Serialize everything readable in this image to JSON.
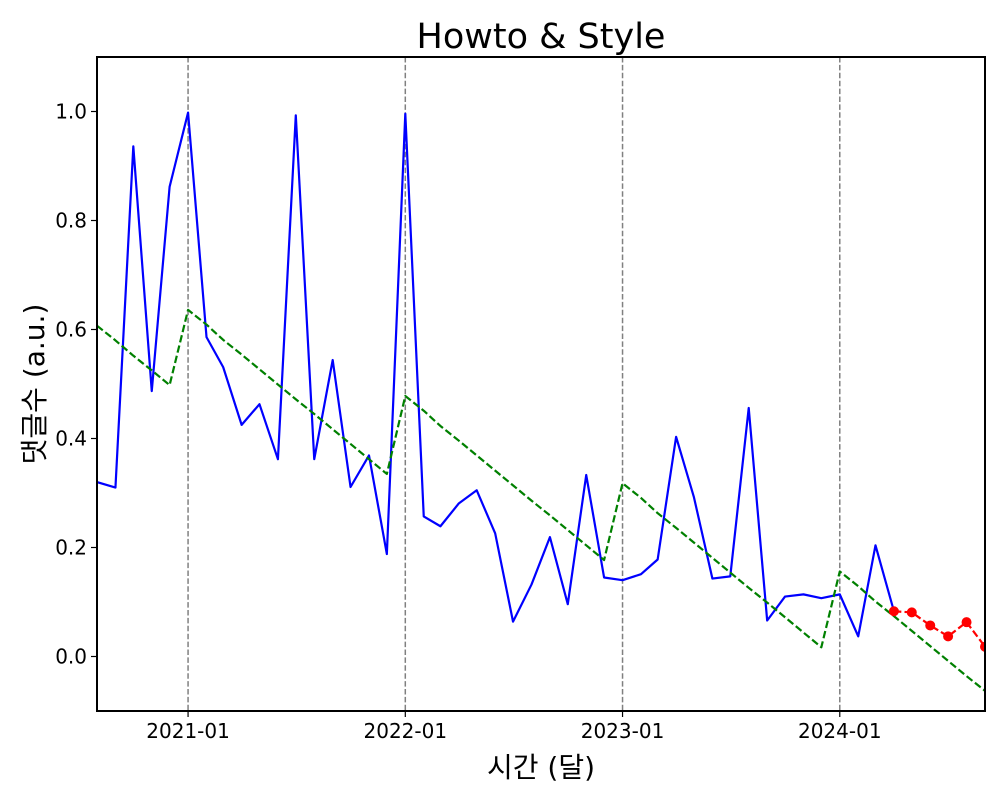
{
  "chart_data": {
    "type": "line",
    "title": "Howto & Style",
    "xlabel": "시간 (달)",
    "ylabel": "댓글수 (a.u.)",
    "xlim": [
      "2020-08",
      "2024-09"
    ],
    "ylim": [
      -0.1,
      1.1
    ],
    "xticks": [
      "2021-01",
      "2022-01",
      "2023-01",
      "2024-01"
    ],
    "yticks": [
      "0.0",
      "0.2",
      "0.4",
      "0.6",
      "0.8",
      "1.0"
    ],
    "grid": false,
    "legend": "none",
    "vlines": {
      "x": [
        "2021-01",
        "2022-01",
        "2023-01",
        "2024-01"
      ],
      "color": "#808080",
      "linestyle": "dashed"
    },
    "x": [
      "2020-08",
      "2020-09",
      "2020-10",
      "2020-11",
      "2020-12",
      "2021-01",
      "2021-02",
      "2021-03",
      "2021-04",
      "2021-05",
      "2021-06",
      "2021-07",
      "2021-08",
      "2021-09",
      "2021-10",
      "2021-11",
      "2021-12",
      "2022-01",
      "2022-02",
      "2022-03",
      "2022-04",
      "2022-05",
      "2022-06",
      "2022-07",
      "2022-08",
      "2022-09",
      "2022-10",
      "2022-11",
      "2022-12",
      "2023-01",
      "2023-02",
      "2023-03",
      "2023-04",
      "2023-05",
      "2023-06",
      "2023-07",
      "2023-08",
      "2023-09",
      "2023-10",
      "2023-11",
      "2023-12",
      "2024-01",
      "2024-02",
      "2024-03",
      "2024-04",
      "2024-05",
      "2024-06",
      "2024-07",
      "2024-08",
      "2024-09"
    ],
    "series": [
      {
        "color": "#0000ff",
        "linestyle": "solid",
        "marker": "none",
        "values": [
          0.32,
          0.31,
          0.936,
          0.487,
          0.862,
          0.998,
          0.586,
          0.531,
          0.425,
          0.463,
          0.362,
          0.993,
          0.362,
          0.544,
          0.311,
          0.369,
          0.188,
          0.996,
          0.257,
          0.239,
          0.281,
          0.305,
          0.226,
          0.064,
          0.132,
          0.219,
          0.096,
          0.333,
          0.145,
          0.14,
          0.151,
          0.178,
          0.403,
          0.292,
          0.143,
          0.147,
          0.456,
          0.066,
          0.11,
          0.114,
          0.107,
          0.114,
          0.037,
          0.204,
          0.083,
          null,
          null,
          null,
          null,
          null
        ]
      },
      {
        "color": "#008000",
        "linestyle": "dashed",
        "marker": "none",
        "values": [
          0.607,
          0.58,
          0.552,
          0.525,
          0.498,
          0.636,
          0.609,
          0.581,
          0.554,
          0.527,
          0.499,
          0.472,
          0.445,
          0.417,
          0.39,
          0.362,
          0.335,
          0.478,
          0.451,
          0.423,
          0.396,
          0.369,
          0.341,
          0.314,
          0.286,
          0.259,
          0.232,
          0.204,
          0.177,
          0.318,
          0.291,
          0.263,
          0.236,
          0.209,
          0.181,
          0.154,
          0.126,
          0.099,
          0.072,
          0.044,
          0.017,
          0.156,
          0.129,
          0.101,
          0.074,
          0.047,
          0.019,
          -0.008,
          -0.036,
          -0.063
        ]
      },
      {
        "color": "#ff0000",
        "linestyle": "dashed",
        "marker": "circle",
        "values": [
          null,
          null,
          null,
          null,
          null,
          null,
          null,
          null,
          null,
          null,
          null,
          null,
          null,
          null,
          null,
          null,
          null,
          null,
          null,
          null,
          null,
          null,
          null,
          null,
          null,
          null,
          null,
          null,
          null,
          null,
          null,
          null,
          null,
          null,
          null,
          null,
          null,
          null,
          null,
          null,
          null,
          null,
          null,
          null,
          0.083,
          0.081,
          0.057,
          0.037,
          0.063,
          0.018
        ]
      }
    ]
  }
}
